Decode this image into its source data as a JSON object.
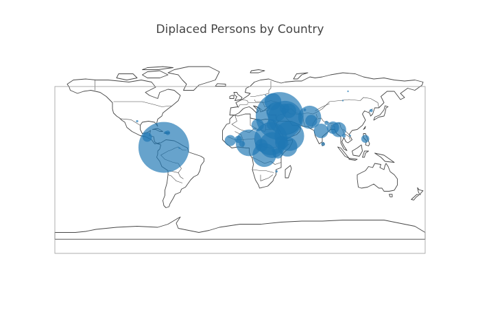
{
  "title": "Diplaced Persons by Country",
  "map": {
    "projection": "equirectangular",
    "lon_range": [
      -180,
      180
    ],
    "lat_range": [
      -90,
      90
    ],
    "land_color": "#ffffff",
    "coastline_color": "#444444",
    "frame_color": "#999999"
  },
  "marker": {
    "color": "#1f77b4",
    "opacity": 0.68,
    "sizing": "area proportional to value"
  },
  "points": [
    {
      "lat": 4.6,
      "lon": -74.1,
      "value": 7300000
    },
    {
      "lat": 35.0,
      "lon": 38.5,
      "value": 6500000
    },
    {
      "lat": 33.2,
      "lon": 43.7,
      "value": 3300000
    },
    {
      "lat": 13.0,
      "lon": 30.0,
      "value": 3100000
    },
    {
      "lat": 15.6,
      "lon": 47.9,
      "value": 2500000
    },
    {
      "lat": 9.0,
      "lon": 8.7,
      "value": 2000000
    },
    {
      "lat": 6.9,
      "lon": 31.3,
      "value": 1900000
    },
    {
      "lat": -2.9,
      "lon": 23.7,
      "value": 1600000
    },
    {
      "lat": 33.9,
      "lon": 67.7,
      "value": 1500000
    },
    {
      "lat": 5.2,
      "lon": 46.2,
      "value": 1100000
    },
    {
      "lat": 6.6,
      "lon": 20.9,
      "value": 450000
    },
    {
      "lat": 30.4,
      "lon": 69.3,
      "value": 400000
    },
    {
      "lat": 9.1,
      "lon": 40.5,
      "value": 500000
    },
    {
      "lat": 49.0,
      "lon": 32.0,
      "value": 800000
    },
    {
      "lat": 26.8,
      "lon": 30.8,
      "value": 300000
    },
    {
      "lat": 26.3,
      "lon": 17.2,
      "value": 430000
    },
    {
      "lat": 11.2,
      "lon": -9.5,
      "value": 350000
    },
    {
      "lat": 12.4,
      "lon": -1.6,
      "value": 150000
    },
    {
      "lat": 20.6,
      "lon": 78.9,
      "value": 600000
    },
    {
      "lat": 21.9,
      "lon": 95.9,
      "value": 640000
    },
    {
      "lat": 12.9,
      "lon": 121.8,
      "value": 180000
    },
    {
      "lat": 15.8,
      "lon": 101.0,
      "value": 40000
    },
    {
      "lat": 23.7,
      "lon": 90.4,
      "value": 430000
    },
    {
      "lat": -1.3,
      "lon": 36.8,
      "value": 300000
    },
    {
      "lat": 1.4,
      "lon": 32.3,
      "value": 30000
    },
    {
      "lat": -18.7,
      "lon": 35.5,
      "value": 15000
    },
    {
      "lat": 42.3,
      "lon": 43.4,
      "value": 270000
    },
    {
      "lat": 40.1,
      "lon": 47.6,
      "value": 600000
    },
    {
      "lat": 39.0,
      "lon": 35.2,
      "value": 1100000
    },
    {
      "lat": 41.0,
      "lon": 63.0,
      "value": 20000
    },
    {
      "lat": 18.7,
      "lon": -70.2,
      "value": 60000
    },
    {
      "lat": 19.0,
      "lon": -72.3,
      "value": 20000
    },
    {
      "lat": 14.6,
      "lon": -90.2,
      "value": 250000
    },
    {
      "lat": 28.4,
      "lon": 84.1,
      "value": 50000
    },
    {
      "lat": 7.9,
      "lon": 80.8,
      "value": 40000
    },
    {
      "lat": 40.3,
      "lon": 127.5,
      "value": 30000
    },
    {
      "lat": 30.0,
      "lon": -100.0,
      "value": 15000
    },
    {
      "lat": 16.0,
      "lon": 107.0,
      "value": 10000
    },
    {
      "lat": 55.0,
      "lon": 25.0,
      "value": 3000
    },
    {
      "lat": 3.9,
      "lon": -59.0,
      "value": 3000
    },
    {
      "lat": 50.0,
      "lon": 100.0,
      "value": 3000
    },
    {
      "lat": 59.0,
      "lon": 105.0,
      "value": 2000
    },
    {
      "lat": 8.0,
      "lon": 2.0,
      "value": 100000
    }
  ]
}
